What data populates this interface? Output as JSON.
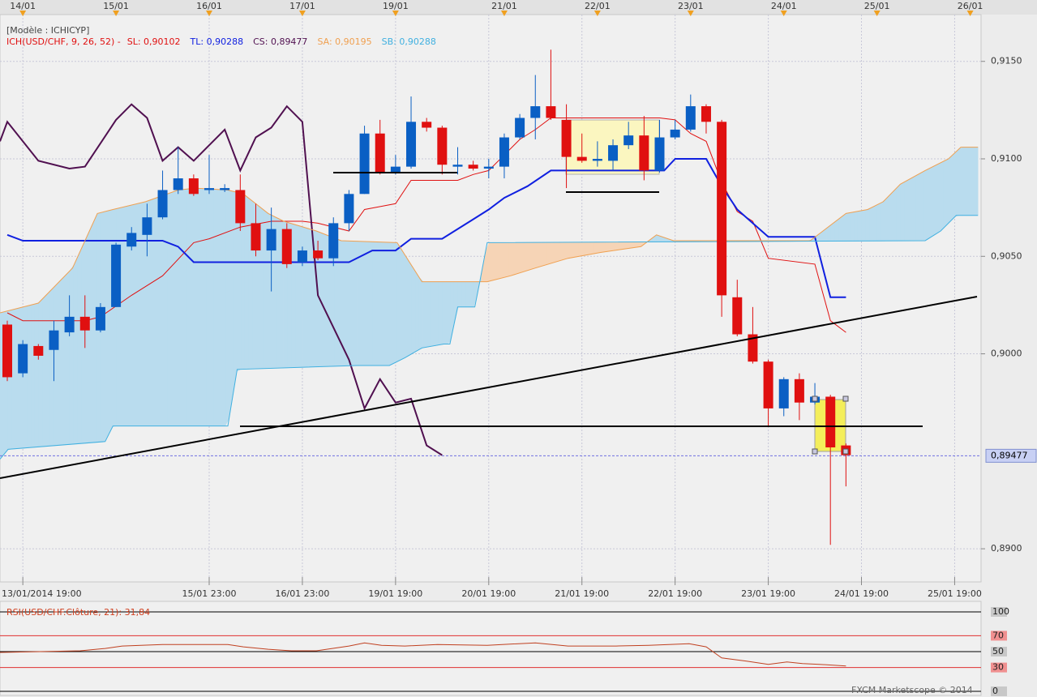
{
  "chart_data": [
    {
      "type": "candlestick",
      "title": "[Modèle : ICHICYP]",
      "indicator": "ICH(USD/CHF, 9, 26, 52) -",
      "x": [
        0,
        1,
        2,
        3,
        4,
        5,
        6,
        7,
        8,
        9,
        10,
        11,
        12,
        13,
        14,
        15,
        16,
        17,
        18,
        19,
        20,
        21,
        22,
        23,
        24,
        25,
        26,
        27,
        28,
        29,
        30,
        31,
        32,
        33,
        34,
        35,
        36,
        37,
        38,
        39,
        40,
        41,
        42,
        43,
        44,
        45,
        46,
        47,
        48,
        49,
        50,
        51,
        52,
        53,
        54
      ],
      "open": [
        0.9015,
        0.899,
        0.9004,
        0.9002,
        0.9011,
        0.9019,
        0.9012,
        0.9024,
        0.9055,
        0.9061,
        0.907,
        0.9084,
        0.909,
        0.9084,
        0.9084,
        0.9084,
        0.9067,
        0.9053,
        0.9064,
        0.9047,
        0.9053,
        0.9049,
        0.9067,
        0.9082,
        0.9113,
        0.9093,
        0.9096,
        0.9119,
        0.9116,
        0.9096,
        0.9097,
        0.9095,
        0.9096,
        0.9111,
        0.9121,
        0.9127,
        0.912,
        0.9101,
        0.9099,
        0.9099,
        0.9107,
        0.9112,
        0.9094,
        0.9111,
        0.9115,
        0.9127,
        0.9119,
        0.9029,
        0.901,
        0.8996,
        0.8972,
        0.8987,
        0.8975,
        0.8978,
        0.8953
      ],
      "high": [
        0.9017,
        0.9007,
        0.9005,
        0.9017,
        0.903,
        0.903,
        0.9026,
        0.9057,
        0.9065,
        0.9077,
        0.9094,
        0.9106,
        0.9092,
        0.9102,
        0.9087,
        0.9092,
        0.9077,
        0.9075,
        0.9067,
        0.9055,
        0.9058,
        0.907,
        0.9084,
        0.9117,
        0.912,
        0.9102,
        0.9132,
        0.9121,
        0.9117,
        0.9106,
        0.9099,
        0.91,
        0.9113,
        0.9123,
        0.9143,
        0.9156,
        0.9128,
        0.9113,
        0.9109,
        0.911,
        0.9119,
        0.9122,
        0.912,
        0.912,
        0.9133,
        0.9128,
        0.912,
        0.9038,
        0.9024,
        0.8997,
        0.8988,
        0.899,
        0.8985,
        0.8979,
        0.8954
      ],
      "low": [
        0.8986,
        0.8988,
        0.8997,
        0.8986,
        0.9009,
        0.9003,
        0.9011,
        0.9024,
        0.9053,
        0.905,
        0.9069,
        0.9082,
        0.9081,
        0.9082,
        0.9083,
        0.9063,
        0.905,
        0.9032,
        0.9044,
        0.9045,
        0.9048,
        0.9045,
        0.9063,
        0.9082,
        0.9092,
        0.9092,
        0.9095,
        0.9114,
        0.9092,
        0.9092,
        0.9094,
        0.909,
        0.909,
        0.911,
        0.911,
        0.912,
        0.9085,
        0.9098,
        0.9096,
        0.9094,
        0.9105,
        0.9089,
        0.9093,
        0.911,
        0.9114,
        0.9113,
        0.9019,
        0.9009,
        0.8995,
        0.8963,
        0.8968,
        0.8966,
        0.8974,
        0.8902,
        0.8932
      ],
      "close": [
        0.8988,
        0.9005,
        0.8999,
        0.9012,
        0.9019,
        0.9012,
        0.9024,
        0.9056,
        0.9062,
        0.907,
        0.9084,
        0.909,
        0.9082,
        0.9085,
        0.9085,
        0.9067,
        0.9053,
        0.9064,
        0.9046,
        0.9053,
        0.9049,
        0.9067,
        0.9082,
        0.9113,
        0.9093,
        0.9096,
        0.9119,
        0.9116,
        0.9097,
        0.9097,
        0.9095,
        0.9096,
        0.9111,
        0.9121,
        0.9127,
        0.9121,
        0.9101,
        0.9099,
        0.91,
        0.9107,
        0.9112,
        0.9094,
        0.9111,
        0.9115,
        0.9127,
        0.9119,
        0.903,
        0.901,
        0.8996,
        0.8972,
        0.8987,
        0.8975,
        0.8978,
        0.8952,
        0.8948
      ],
      "up_color": "#0a5fc4",
      "down_color": "#e01010",
      "series": [
        {
          "name": "SL: 0,90102",
          "color": "#e01010",
          "x": [
            0,
            1,
            5,
            6,
            8,
            10,
            12,
            13,
            15,
            17,
            19,
            20,
            22,
            23,
            25,
            26,
            29,
            30,
            31,
            32,
            33,
            34,
            35,
            42,
            43,
            44,
            45,
            46,
            47,
            48,
            49,
            52,
            53,
            54
          ],
          "values": [
            0.9021,
            0.9017,
            0.9017,
            0.9019,
            0.903,
            0.904,
            0.9057,
            0.9059,
            0.9065,
            0.9068,
            0.9068,
            0.9067,
            0.9063,
            0.9074,
            0.9077,
            0.9089,
            0.9089,
            0.9092,
            0.9094,
            0.9102,
            0.911,
            0.9115,
            0.9121,
            0.9121,
            0.912,
            0.9113,
            0.9109,
            0.9088,
            0.9073,
            0.9068,
            0.9049,
            0.9046,
            0.9017,
            0.9011
          ]
        },
        {
          "name": "TL: 0,90288",
          "color": "#1020e0",
          "x": [
            0,
            1,
            10,
            11,
            12,
            22,
            23.5,
            25,
            26,
            28,
            30,
            31,
            32,
            33.5,
            35,
            42.3,
            43,
            45,
            46,
            47,
            49,
            52,
            53,
            54
          ],
          "values": [
            0.9061,
            0.9058,
            0.9058,
            0.9055,
            0.9047,
            0.9047,
            0.9053,
            0.9053,
            0.9059,
            0.9059,
            0.9069,
            0.9074,
            0.908,
            0.9086,
            0.9094,
            0.9094,
            0.91,
            0.91,
            0.9086,
            0.9074,
            0.906,
            0.906,
            0.9029,
            0.9029
          ]
        },
        {
          "name": "CS: 0,89477",
          "color": "#501050",
          "x": [
            -0.47,
            0,
            2,
            4,
            5,
            7,
            8,
            9,
            10,
            11,
            12,
            13,
            14,
            15,
            16,
            17,
            18,
            19,
            20,
            22,
            23,
            24,
            25,
            26,
            27,
            28
          ],
          "values": [
            0.9109,
            0.9119,
            0.9099,
            0.9095,
            0.9096,
            0.912,
            0.9128,
            0.9121,
            0.9099,
            0.9106,
            0.9099,
            0.9107,
            0.9115,
            0.9094,
            0.9111,
            0.9116,
            0.9127,
            0.9119,
            0.903,
            0.8997,
            0.8972,
            0.8987,
            0.8975,
            0.8977,
            0.8953,
            0.8948
          ]
        },
        {
          "name": "SA: 0,90195",
          "color": "#f0a050",
          "x": [
            -0.47,
            2,
            4.2,
            5.8,
            6.8,
            8.9,
            11,
            12.1,
            14.2,
            15.2,
            16.8,
            17.8,
            19.9,
            21.5,
            25.1,
            26.7,
            30.9,
            32.4,
            34,
            36.1,
            38.2,
            40.8,
            41.8,
            42.9,
            51.7,
            54,
            55.4,
            56.4,
            57.5,
            59.1,
            60.6,
            61.4,
            62.5
          ],
          "values": [
            0.9021,
            0.9026,
            0.9044,
            0.9072,
            0.9074,
            0.9078,
            0.9084,
            0.9085,
            0.9084,
            0.9082,
            0.9072,
            0.9068,
            0.9063,
            0.9058,
            0.9057,
            0.9037,
            0.9037,
            0.904,
            0.9044,
            0.9049,
            0.9052,
            0.9055,
            0.9061,
            0.9058,
            0.9058,
            0.9072,
            0.9074,
            0.9078,
            0.9087,
            0.9094,
            0.91,
            0.9106,
            0.9106
          ]
        },
        {
          "name": "SB: 0,90288",
          "color": "#40b0e0",
          "x": [
            -0.47,
            0.05,
            6.3,
            6.8,
            14.2,
            14.8,
            22.5,
            24.6,
            25.6,
            26.7,
            28.1,
            28.5,
            29,
            30.1,
            30.4,
            30.9,
            59.1,
            60.1,
            61.1,
            62.5
          ],
          "values": [
            0.8946,
            0.8951,
            0.8955,
            0.8963,
            0.8963,
            0.8992,
            0.8994,
            0.8994,
            0.8998,
            0.9003,
            0.9005,
            0.9005,
            0.9024,
            0.9024,
            0.9036,
            0.9057,
            0.9058,
            0.9063,
            0.9071,
            0.9071
          ]
        }
      ],
      "cloud_up_color": "#b9dcee",
      "cloud_down_color": "#f6d4b6",
      "xlim": [
        -0.47,
        62.7
      ],
      "xticks": [
        {
          "value": 1,
          "label": "13/01/2014 19:00"
        },
        {
          "value": 13,
          "label": "15/01 23:00"
        },
        {
          "value": 19,
          "label": "16/01 23:00"
        },
        {
          "value": 25,
          "label": "19/01 19:00"
        },
        {
          "value": 31,
          "label": "20/01 19:00"
        },
        {
          "value": 37,
          "label": "21/01 19:00"
        },
        {
          "value": 43,
          "label": "22/01 19:00"
        },
        {
          "value": 49,
          "label": "23/01 19:00"
        },
        {
          "value": 55,
          "label": "24/01 19:00"
        },
        {
          "value": 61,
          "label": "25/01 19:00"
        }
      ],
      "top_xticks": [
        {
          "value": 1,
          "label": "14/01"
        },
        {
          "value": 7,
          "label": "15/01"
        },
        {
          "value": 13,
          "label": "16/01"
        },
        {
          "value": 19,
          "label": "17/01"
        },
        {
          "value": 25,
          "label": "19/01"
        },
        {
          "value": 32,
          "label": "21/01"
        },
        {
          "value": 38,
          "label": "22/01"
        },
        {
          "value": 44,
          "label": "23/01"
        },
        {
          "value": 50,
          "label": "24/01"
        },
        {
          "value": 56,
          "label": "25/01"
        },
        {
          "value": 62,
          "label": "26/01"
        }
      ],
      "ylim": [
        0.8883,
        0.9174
      ],
      "yticks": [
        {
          "value": 0.915,
          "label": "0,9150"
        },
        {
          "value": 0.91,
          "label": "0,9100"
        },
        {
          "value": 0.905,
          "label": "0,9050"
        },
        {
          "value": 0.9,
          "label": "0,9000"
        },
        {
          "value": 0.89,
          "label": "0,8900"
        }
      ],
      "last_price": {
        "value": 0.89477,
        "label": "0,89477"
      },
      "grid": true
    },
    {
      "type": "line",
      "title": "RSI(USD/CHF.Clôture, 21): 31,84",
      "color": "#c04020",
      "x": [
        -0.47,
        4.7,
        6.3,
        7.4,
        10,
        14.2,
        15.2,
        16.8,
        18.3,
        19.9,
        22,
        23,
        24.1,
        25.6,
        27.7,
        30.9,
        34,
        36.1,
        39.2,
        41.3,
        43.9,
        45,
        46,
        47.6,
        49,
        50.2,
        51.2,
        52.3,
        54
      ],
      "values": [
        49,
        51,
        54,
        57,
        59,
        59,
        56,
        53,
        51,
        51,
        57,
        61,
        58,
        57,
        59,
        58,
        61,
        57,
        57,
        58,
        60,
        56,
        42,
        38,
        34,
        37,
        35,
        34,
        31.84
      ],
      "xlim": [
        -0.47,
        62.7
      ],
      "ylim": [
        0,
        100
      ],
      "yticks": [
        100,
        70,
        50,
        30,
        0
      ],
      "tick_colors": [
        "#000000",
        "#e03030",
        "#000000",
        "#e03030",
        "#000000"
      ],
      "tick_fills": [
        "#c8c8c8",
        "#f09090",
        "#c8c8c8",
        "#f09090",
        "#c8c8c8"
      ],
      "footer": "FXCM Marketscope © 2014"
    }
  ]
}
